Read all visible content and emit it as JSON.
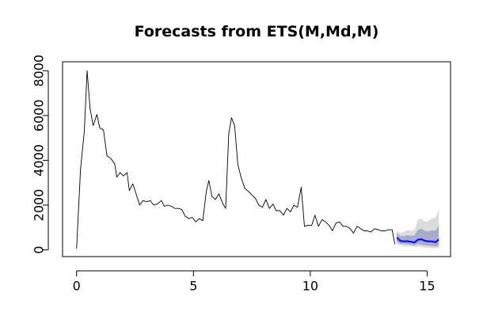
{
  "chart_data": {
    "type": "line",
    "title": "Forecasts from ETS(M,Md,M)",
    "xlabel": "",
    "ylabel": "",
    "xlim": [
      -0.6,
      16.0
    ],
    "ylim": [
      -300,
      8400
    ],
    "x_ticks": [
      0,
      5,
      10,
      15
    ],
    "x_tick_labels": [
      "0",
      "5",
      "10",
      "15"
    ],
    "y_ticks": [
      0,
      2000,
      4000,
      6000,
      8000
    ],
    "y_tick_labels": [
      "0",
      "2000",
      "4000",
      "6000",
      "8000"
    ],
    "grid": false,
    "legend": "none",
    "colors": {
      "history": "#000000",
      "forecast": "#0000ff",
      "band80": "#aaaacc",
      "band95": "#dcdcdc"
    },
    "series": [
      {
        "values": [
          [
            0.0,
            50
          ],
          [
            0.17,
            3600
          ],
          [
            0.33,
            5300
          ],
          [
            0.45,
            8000
          ],
          [
            0.58,
            6300
          ],
          [
            0.71,
            5550
          ],
          [
            0.87,
            6050
          ],
          [
            0.99,
            5450
          ],
          [
            1.15,
            5350
          ],
          [
            1.3,
            4200
          ],
          [
            1.45,
            4100
          ],
          [
            1.63,
            3850
          ],
          [
            1.72,
            3250
          ],
          [
            1.86,
            3450
          ],
          [
            2.01,
            3300
          ],
          [
            2.16,
            3450
          ],
          [
            2.26,
            2650
          ],
          [
            2.41,
            2950
          ],
          [
            2.56,
            2450
          ],
          [
            2.7,
            2000
          ],
          [
            2.84,
            2200
          ],
          [
            3.0,
            2150
          ],
          [
            3.15,
            2200
          ],
          [
            3.3,
            2000
          ],
          [
            3.45,
            2050
          ],
          [
            3.63,
            2200
          ],
          [
            3.75,
            1950
          ],
          [
            3.9,
            2000
          ],
          [
            4.05,
            1950
          ],
          [
            4.21,
            1850
          ],
          [
            4.36,
            1850
          ],
          [
            4.5,
            1800
          ],
          [
            4.65,
            1500
          ],
          [
            4.8,
            1400
          ],
          [
            4.95,
            1450
          ],
          [
            5.1,
            1250
          ],
          [
            5.25,
            1400
          ],
          [
            5.4,
            1300
          ],
          [
            5.55,
            2600
          ],
          [
            5.66,
            3100
          ],
          [
            5.79,
            2400
          ],
          [
            5.94,
            2250
          ],
          [
            6.09,
            2500
          ],
          [
            6.24,
            2100
          ],
          [
            6.38,
            1850
          ],
          [
            6.51,
            5200
          ],
          [
            6.63,
            5900
          ],
          [
            6.76,
            5550
          ],
          [
            6.9,
            3800
          ],
          [
            7.05,
            3200
          ],
          [
            7.2,
            2750
          ],
          [
            7.36,
            2600
          ],
          [
            7.5,
            2450
          ],
          [
            7.65,
            2300
          ],
          [
            7.8,
            2000
          ],
          [
            7.95,
            1900
          ],
          [
            8.1,
            2250
          ],
          [
            8.25,
            1850
          ],
          [
            8.4,
            2050
          ],
          [
            8.54,
            1750
          ],
          [
            8.7,
            1750
          ],
          [
            8.85,
            1550
          ],
          [
            9.0,
            1850
          ],
          [
            9.15,
            1700
          ],
          [
            9.3,
            2000
          ],
          [
            9.45,
            1900
          ],
          [
            9.61,
            2800
          ],
          [
            9.75,
            1050
          ],
          [
            9.9,
            1100
          ],
          [
            10.06,
            1100
          ],
          [
            10.2,
            1550
          ],
          [
            10.35,
            1050
          ],
          [
            10.5,
            1350
          ],
          [
            10.65,
            1250
          ],
          [
            10.8,
            1100
          ],
          [
            10.95,
            850
          ],
          [
            11.1,
            1200
          ],
          [
            11.25,
            1250
          ],
          [
            11.4,
            1050
          ],
          [
            11.55,
            1050
          ],
          [
            11.7,
            950
          ],
          [
            11.85,
            750
          ],
          [
            12.0,
            1050
          ],
          [
            12.16,
            950
          ],
          [
            12.3,
            850
          ],
          [
            12.45,
            850
          ],
          [
            12.6,
            800
          ],
          [
            12.75,
            950
          ],
          [
            12.9,
            900
          ],
          [
            13.05,
            850
          ],
          [
            13.2,
            850
          ],
          [
            13.35,
            900
          ],
          [
            13.5,
            900
          ],
          [
            13.62,
            250
          ]
        ]
      },
      {
        "values": [
          [
            13.7,
            550
          ],
          [
            13.86,
            400
          ],
          [
            14.0,
            380
          ],
          [
            14.15,
            390
          ],
          [
            14.31,
            360
          ],
          [
            14.46,
            330
          ],
          [
            14.61,
            460
          ],
          [
            14.76,
            470
          ],
          [
            14.91,
            400
          ],
          [
            15.06,
            380
          ],
          [
            15.21,
            380
          ],
          [
            15.36,
            340
          ],
          [
            15.5,
            470
          ]
        ]
      }
    ],
    "prediction_intervals": [
      {
        "level": 95,
        "x": [
          13.7,
          13.86,
          14.0,
          14.15,
          14.31,
          14.46,
          14.61,
          14.76,
          14.91,
          15.06,
          15.21,
          15.36,
          15.5
        ],
        "lower": [
          250,
          180,
          170,
          160,
          150,
          130,
          140,
          120,
          100,
          90,
          80,
          70,
          80
        ],
        "upper": [
          850,
          750,
          800,
          900,
          850,
          900,
          1350,
          1400,
          1250,
          1300,
          1400,
          1450,
          1800
        ]
      },
      {
        "level": 80,
        "x": [
          13.7,
          13.86,
          14.0,
          14.15,
          14.31,
          14.46,
          14.61,
          14.76,
          14.91,
          15.06,
          15.21,
          15.36,
          15.5
        ],
        "lower": [
          350,
          270,
          260,
          250,
          230,
          210,
          250,
          230,
          190,
          180,
          170,
          150,
          180
        ],
        "upper": [
          750,
          620,
          620,
          660,
          630,
          640,
          900,
          950,
          850,
          820,
          880,
          850,
          1100
        ]
      }
    ]
  }
}
